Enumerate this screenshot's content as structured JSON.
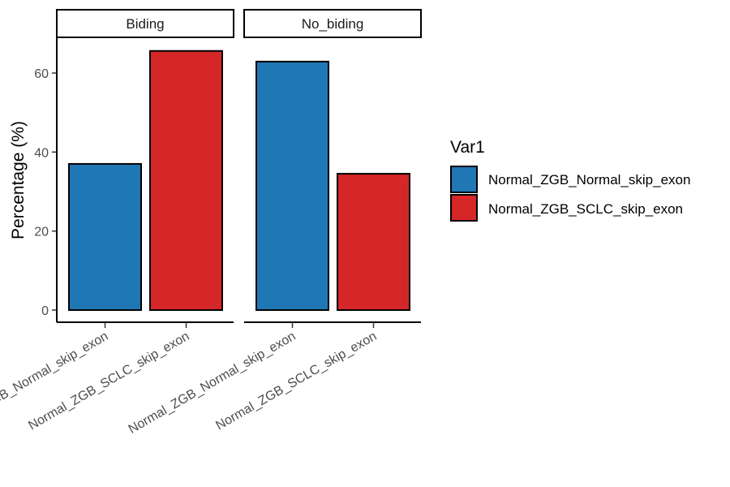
{
  "chart_data": {
    "type": "bar",
    "ylabel": "Percentage (%)",
    "xlabel": "",
    "ylim": [
      0,
      68
    ],
    "yticks": [
      0,
      20,
      40,
      60
    ],
    "grid": false,
    "legend_position": "right",
    "legend": {
      "title": "Var1",
      "entries": [
        {
          "label": "Normal_ZGB_Normal_skip_exon",
          "color": "#1F77B4"
        },
        {
          "label": "Normal_ZGB_SCLC_skip_exon",
          "color": "#D62728"
        }
      ]
    },
    "panels": [
      {
        "strip": "Biding",
        "bars": [
          {
            "category": "Normal_ZGB_Normal_skip_exon",
            "tick_label": "Normal_ZGB_Normal_skip_exon",
            "value": 37.0,
            "color": "#1F77B4"
          },
          {
            "category": "Normal_ZGB_SCLC_skip_exon",
            "tick_label": "Normal_ZGB_SCLC_skip_exon",
            "value": 65.6,
            "color": "#D62728"
          }
        ]
      },
      {
        "strip": "No_biding",
        "bars": [
          {
            "category": "Normal_ZGB_Normal_skip_exon",
            "tick_label": "Normal_ZGB_Normal_skip_exon",
            "value": 62.9,
            "color": "#1F77B4"
          },
          {
            "category": "Normal_ZGB_SCLC_skip_exon",
            "tick_label": "Normal_ZGB_SCLC_skip_exon",
            "value": 34.5,
            "color": "#D62728"
          }
        ]
      }
    ]
  }
}
